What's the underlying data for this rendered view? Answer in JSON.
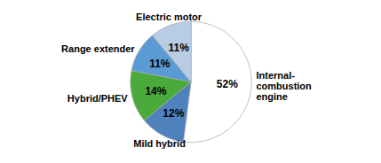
{
  "chart_data": {
    "type": "pie",
    "categories": [
      "Internal-\ncombustion\nengine",
      "Mild hybrid",
      "Hybrid/PHEV",
      "Range extender",
      "Electric motor"
    ],
    "values": [
      52,
      12,
      14,
      11,
      11
    ],
    "value_labels": [
      "52%",
      "12%",
      "14%",
      "11%",
      "11%"
    ],
    "colors": [
      "#ffffff",
      "#4f81bd",
      "#4bab3a",
      "#5b9bd5",
      "#b8cce4"
    ],
    "data_labels": true
  }
}
